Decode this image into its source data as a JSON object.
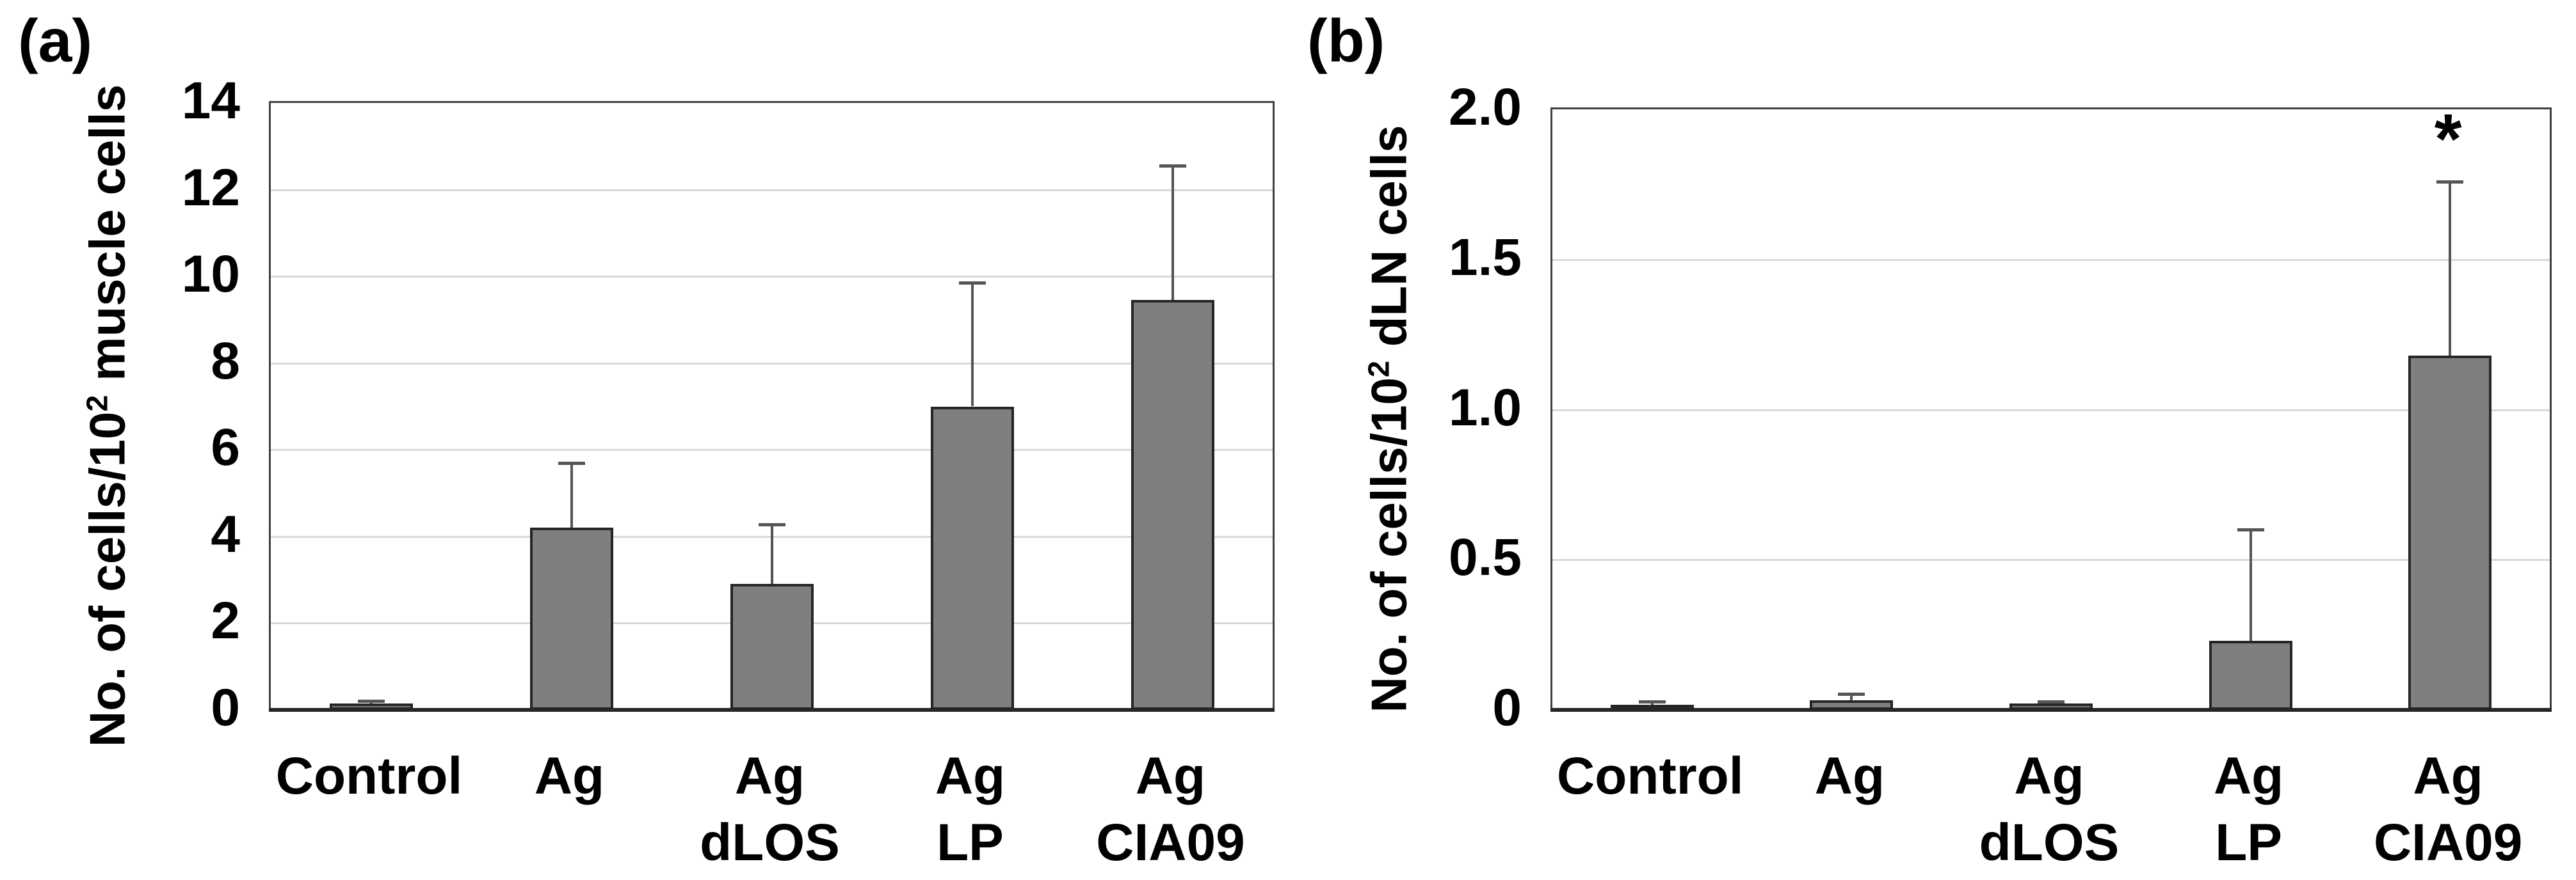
{
  "figure": {
    "background": "#ffffff",
    "panels": [
      "(a)",
      "(b)"
    ]
  },
  "colors": {
    "bar_fill": "#7f7f7f",
    "bar_border": "#262626",
    "error_bar": "#555555",
    "gridline": "#d9d9d9",
    "plot_border": "#404040",
    "axis_line": "#262626",
    "text": "#000000"
  },
  "chart_data": [
    {
      "type": "bar",
      "panel_label": "(a)",
      "ylabel": {
        "prefix": "No. of cells/10",
        "superscript": "2",
        "suffix": " muscle cells"
      },
      "categories": [
        {
          "line1": "Control",
          "line2": ""
        },
        {
          "line1": "Ag",
          "line2": ""
        },
        {
          "line1": "Ag",
          "line2": "dLOS"
        },
        {
          "line1": "Ag",
          "line2": "LP"
        },
        {
          "line1": "Ag",
          "line2": "CIA09"
        }
      ],
      "values": [
        0.15,
        4.2,
        2.9,
        7.0,
        9.45
      ],
      "error_up": [
        0.05,
        1.5,
        1.38,
        2.85,
        3.1
      ],
      "significance": [
        "",
        "",
        "",
        "",
        ""
      ],
      "ylim": [
        0,
        14
      ],
      "yticks": [
        {
          "value": 0,
          "label": "0"
        },
        {
          "value": 2,
          "label": "2"
        },
        {
          "value": 4,
          "label": "4"
        },
        {
          "value": 6,
          "label": "6"
        },
        {
          "value": 8,
          "label": "8"
        },
        {
          "value": 10,
          "label": "10"
        },
        {
          "value": 12,
          "label": "12"
        },
        {
          "value": 14,
          "label": "14"
        }
      ],
      "grid": true,
      "legend": null
    },
    {
      "type": "bar",
      "panel_label": "(b)",
      "ylabel": {
        "prefix": "No. of cells/10",
        "superscript": "2",
        "suffix": " dLN cells"
      },
      "categories": [
        {
          "line1": "Control",
          "line2": ""
        },
        {
          "line1": "Ag",
          "line2": ""
        },
        {
          "line1": "Ag",
          "line2": "dLOS"
        },
        {
          "line1": "Ag",
          "line2": "LP"
        },
        {
          "line1": "Ag",
          "line2": "CIA09"
        }
      ],
      "values": [
        0.016,
        0.032,
        0.021,
        0.23,
        1.18
      ],
      "error_up": [
        0.012,
        0.022,
        0.007,
        0.37,
        0.58
      ],
      "significance": [
        "",
        "",
        "",
        "",
        "*"
      ],
      "ylim": [
        0,
        2
      ],
      "yticks": [
        {
          "value": 0,
          "label": "0"
        },
        {
          "value": 0.5,
          "label": "0.5"
        },
        {
          "value": 1.0,
          "label": "1.0"
        },
        {
          "value": 1.5,
          "label": "1.5"
        },
        {
          "value": 2.0,
          "label": "2.0"
        }
      ],
      "grid": true,
      "legend": null
    }
  ]
}
